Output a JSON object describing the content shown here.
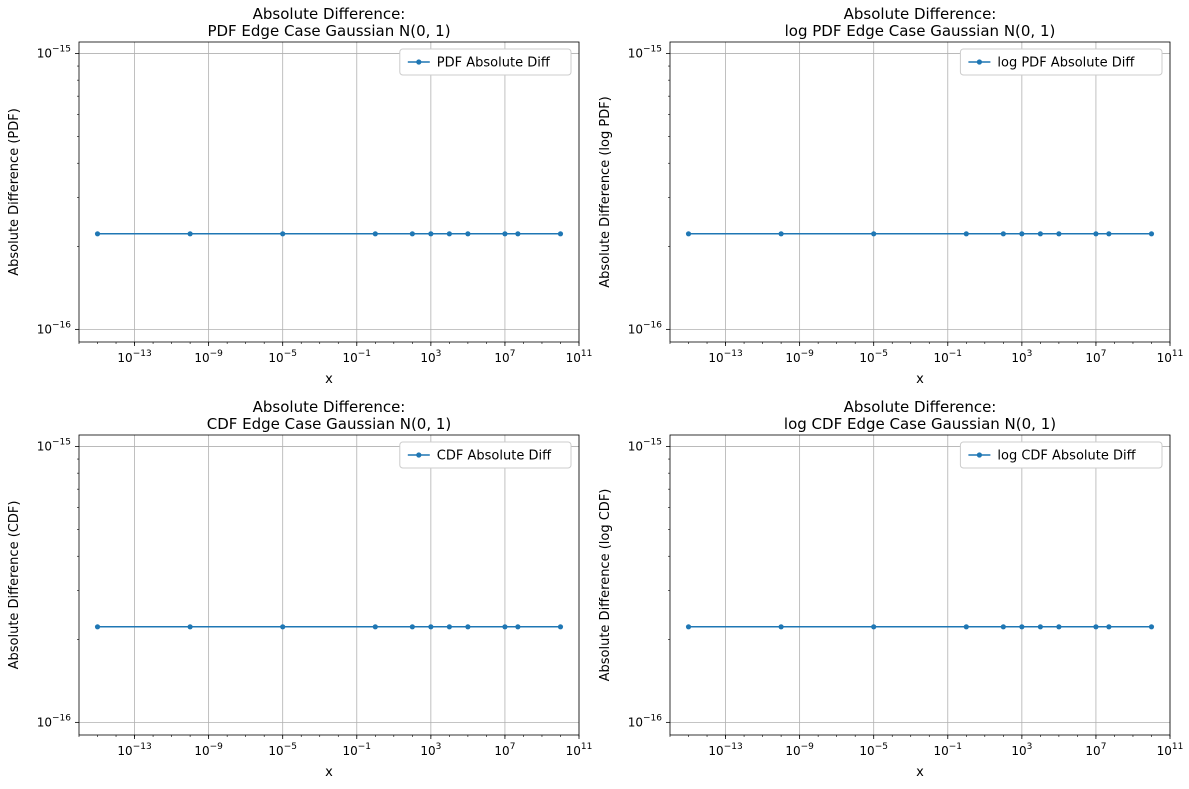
{
  "chart_data": [
    {
      "type": "line",
      "title": [
        "Absolute Difference:",
        "PDF Edge Case Gaussian N(0, 1)"
      ],
      "xlabel": "x",
      "ylabel": "Absolute Difference (PDF)",
      "xscale": "log",
      "yscale": "log",
      "xlim": [
        1e-16,
        100000000000.0
      ],
      "ylim": [
        9e-17,
        1.1e-15
      ],
      "xticks": [
        {
          "value": 1e-13,
          "base": "10",
          "exp": "−13"
        },
        {
          "value": 1e-09,
          "base": "10",
          "exp": "−9"
        },
        {
          "value": 1e-05,
          "base": "10",
          "exp": "−5"
        },
        {
          "value": 0.1,
          "base": "10",
          "exp": "−1"
        },
        {
          "value": 1000,
          "base": "10",
          "exp": "3"
        },
        {
          "value": 10000000.0,
          "base": "10",
          "exp": "7"
        },
        {
          "value": 100000000000.0,
          "base": "10",
          "exp": "11"
        }
      ],
      "yticks": [
        {
          "value": 1e-16,
          "base": "10",
          "exp": "−16"
        },
        {
          "value": 1e-15,
          "base": "10",
          "exp": "−15"
        }
      ],
      "grid": true,
      "legend_position": "top-right",
      "series": [
        {
          "name": "PDF Absolute Diff",
          "color": "#1f77b4",
          "x": [
            1e-15,
            1e-10,
            1e-05,
            1,
            100,
            1000,
            10000,
            100000,
            10000000.0,
            50000000.0,
            10000000000.0
          ],
          "y": [
            2.22e-16,
            2.22e-16,
            2.22e-16,
            2.22e-16,
            2.22e-16,
            2.22e-16,
            2.22e-16,
            2.22e-16,
            2.22e-16,
            2.22e-16,
            2.22e-16
          ]
        }
      ]
    },
    {
      "type": "line",
      "title": [
        "Absolute Difference:",
        "log PDF Edge Case Gaussian N(0, 1)"
      ],
      "xlabel": "x",
      "ylabel": "Absolute Difference (log PDF)",
      "xscale": "log",
      "yscale": "log",
      "xlim": [
        1e-16,
        100000000000.0
      ],
      "ylim": [
        9e-17,
        1.1e-15
      ],
      "xticks": [
        {
          "value": 1e-13,
          "base": "10",
          "exp": "−13"
        },
        {
          "value": 1e-09,
          "base": "10",
          "exp": "−9"
        },
        {
          "value": 1e-05,
          "base": "10",
          "exp": "−5"
        },
        {
          "value": 0.1,
          "base": "10",
          "exp": "−1"
        },
        {
          "value": 1000,
          "base": "10",
          "exp": "3"
        },
        {
          "value": 10000000.0,
          "base": "10",
          "exp": "7"
        },
        {
          "value": 100000000000.0,
          "base": "10",
          "exp": "11"
        }
      ],
      "yticks": [
        {
          "value": 1e-16,
          "base": "10",
          "exp": "−16"
        },
        {
          "value": 1e-15,
          "base": "10",
          "exp": "−15"
        }
      ],
      "grid": true,
      "legend_position": "top-right",
      "series": [
        {
          "name": "log PDF Absolute Diff",
          "color": "#1f77b4",
          "x": [
            1e-15,
            1e-10,
            1e-05,
            1,
            100,
            1000,
            10000,
            100000,
            10000000.0,
            50000000.0,
            10000000000.0
          ],
          "y": [
            2.22e-16,
            2.22e-16,
            2.22e-16,
            2.22e-16,
            2.22e-16,
            2.22e-16,
            2.22e-16,
            2.22e-16,
            2.22e-16,
            2.22e-16,
            2.22e-16
          ]
        }
      ]
    },
    {
      "type": "line",
      "title": [
        "Absolute Difference:",
        "CDF Edge Case Gaussian N(0, 1)"
      ],
      "xlabel": "x",
      "ylabel": "Absolute Difference (CDF)",
      "xscale": "log",
      "yscale": "log",
      "xlim": [
        1e-16,
        100000000000.0
      ],
      "ylim": [
        9e-17,
        1.1e-15
      ],
      "xticks": [
        {
          "value": 1e-13,
          "base": "10",
          "exp": "−13"
        },
        {
          "value": 1e-09,
          "base": "10",
          "exp": "−9"
        },
        {
          "value": 1e-05,
          "base": "10",
          "exp": "−5"
        },
        {
          "value": 0.1,
          "base": "10",
          "exp": "−1"
        },
        {
          "value": 1000,
          "base": "10",
          "exp": "3"
        },
        {
          "value": 10000000.0,
          "base": "10",
          "exp": "7"
        },
        {
          "value": 100000000000.0,
          "base": "10",
          "exp": "11"
        }
      ],
      "yticks": [
        {
          "value": 1e-16,
          "base": "10",
          "exp": "−16"
        },
        {
          "value": 1e-15,
          "base": "10",
          "exp": "−15"
        }
      ],
      "grid": true,
      "legend_position": "top-right",
      "series": [
        {
          "name": "CDF Absolute Diff",
          "color": "#1f77b4",
          "x": [
            1e-15,
            1e-10,
            1e-05,
            1,
            100,
            1000,
            10000,
            100000,
            10000000.0,
            50000000.0,
            10000000000.0
          ],
          "y": [
            2.22e-16,
            2.22e-16,
            2.22e-16,
            2.22e-16,
            2.22e-16,
            2.22e-16,
            2.22e-16,
            2.22e-16,
            2.22e-16,
            2.22e-16,
            2.22e-16
          ]
        }
      ]
    },
    {
      "type": "line",
      "title": [
        "Absolute Difference:",
        "log CDF Edge Case Gaussian N(0, 1)"
      ],
      "xlabel": "x",
      "ylabel": "Absolute Difference (log CDF)",
      "xscale": "log",
      "yscale": "log",
      "xlim": [
        1e-16,
        100000000000.0
      ],
      "ylim": [
        9e-17,
        1.1e-15
      ],
      "xticks": [
        {
          "value": 1e-13,
          "base": "10",
          "exp": "−13"
        },
        {
          "value": 1e-09,
          "base": "10",
          "exp": "−9"
        },
        {
          "value": 1e-05,
          "base": "10",
          "exp": "−5"
        },
        {
          "value": 0.1,
          "base": "10",
          "exp": "−1"
        },
        {
          "value": 1000,
          "base": "10",
          "exp": "3"
        },
        {
          "value": 10000000.0,
          "base": "10",
          "exp": "7"
        },
        {
          "value": 100000000000.0,
          "base": "10",
          "exp": "11"
        }
      ],
      "yticks": [
        {
          "value": 1e-16,
          "base": "10",
          "exp": "−16"
        },
        {
          "value": 1e-15,
          "base": "10",
          "exp": "−15"
        }
      ],
      "grid": true,
      "legend_position": "top-right",
      "series": [
        {
          "name": "log CDF Absolute Diff",
          "color": "#1f77b4",
          "x": [
            1e-15,
            1e-10,
            1e-05,
            1,
            100,
            1000,
            10000,
            100000,
            10000000.0,
            50000000.0,
            10000000000.0
          ],
          "y": [
            2.22e-16,
            2.22e-16,
            2.22e-16,
            2.22e-16,
            2.22e-16,
            2.22e-16,
            2.22e-16,
            2.22e-16,
            2.22e-16,
            2.22e-16,
            2.22e-16
          ]
        }
      ]
    }
  ]
}
